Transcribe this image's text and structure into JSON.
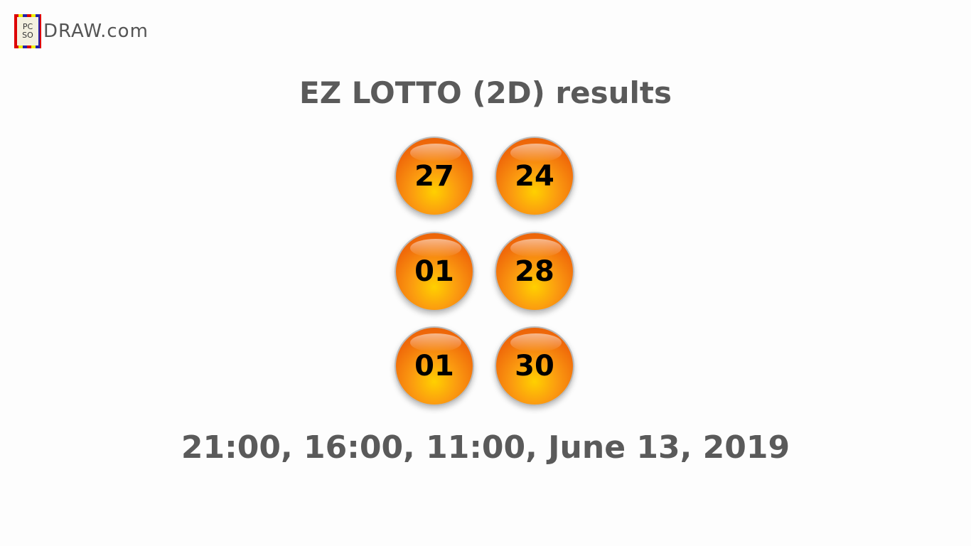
{
  "logo": {
    "mark_text": "PCSO",
    "text": "DRAW.com"
  },
  "title": "EZ LOTTO (2D) results",
  "balls": [
    "27",
    "24",
    "01",
    "28",
    "01",
    "30"
  ],
  "date": "21:00, 16:00, 11:00, June 13, 2019",
  "colors": {
    "ball": "#f07a0a",
    "text": "#5a5a5a"
  }
}
